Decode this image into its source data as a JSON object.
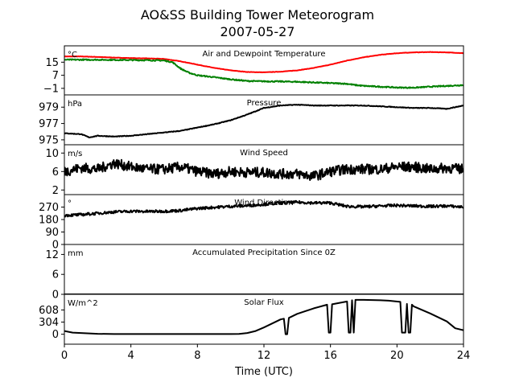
{
  "title_line1": "AO&SS Building Tower Meteorogram",
  "title_line2": "2007-05-27",
  "chart_data": {
    "type": "line",
    "xlabel": "Time (UTC)",
    "xlim": [
      0,
      24
    ],
    "xticks": [
      "0",
      "4",
      "8",
      "12",
      "16",
      "20",
      "24"
    ],
    "panels": [
      {
        "id": "temperature",
        "title": "Air and Dewpoint Temperature",
        "unit": "°C",
        "ylim": [
          -5,
          25
        ],
        "yticks": [
          "−1",
          "7",
          "15"
        ],
        "ytick_values": [
          -1,
          7,
          15
        ],
        "series": [
          {
            "color": "#ff0000",
            "x": [
              0,
              1,
              2,
              3,
              4,
              5,
              6,
              7,
              8,
              9,
              10,
              11,
              12,
              13,
              14,
              15,
              16,
              17,
              18,
              19,
              20,
              21,
              22,
              23,
              24
            ],
            "y": [
              18.5,
              18.5,
              18.2,
              17.8,
              17.5,
              17.3,
              17.0,
              15.5,
              13.5,
              11.5,
              10.0,
              9.0,
              8.8,
              9.2,
              10.0,
              11.5,
              13.5,
              16.0,
              18.0,
              19.5,
              20.5,
              21.0,
              21.2,
              21.0,
              20.5
            ]
          },
          {
            "color": "#008000",
            "x": [
              0,
              1,
              2,
              3,
              4,
              5,
              6,
              6.5,
              7,
              7.5,
              8,
              9,
              10,
              11,
              12,
              13,
              14,
              15,
              16,
              17,
              17.5,
              18,
              19,
              20,
              21,
              22,
              23,
              24
            ],
            "y": [
              16.5,
              16.5,
              16.5,
              16.4,
              16.3,
              16.2,
              16.0,
              15.0,
              11.0,
              8.5,
              7.0,
              5.8,
              4.5,
              3.5,
              3.3,
              3.2,
              3.0,
              2.6,
              2.2,
              1.8,
              1.0,
              0.5,
              0.0,
              -0.5,
              -0.6,
              0.0,
              0.5,
              1.0
            ]
          }
        ]
      },
      {
        "id": "pressure",
        "title": "Pressure",
        "unit": "hPa",
        "ylim": [
          974.4,
          980.5
        ],
        "yticks": [
          "975",
          "977",
          "979"
        ],
        "ytick_values": [
          975,
          977,
          979
        ],
        "series": [
          {
            "color": "#000000",
            "x": [
              0,
              1,
              1.5,
              2,
              3,
              4,
              5,
              6,
              7,
              8,
              9,
              10,
              11,
              12,
              13,
              14,
              15,
              16,
              17,
              18,
              19,
              20,
              21,
              22,
              23,
              24
            ],
            "y": [
              975.8,
              975.7,
              975.3,
              975.5,
              975.4,
              975.5,
              975.7,
              975.9,
              976.1,
              976.5,
              976.9,
              977.4,
              978.1,
              978.9,
              979.2,
              979.3,
              979.2,
              979.2,
              979.2,
              979.2,
              979.1,
              979.0,
              978.9,
              978.9,
              978.8,
              979.2
            ]
          }
        ]
      },
      {
        "id": "wind_speed",
        "title": "Wind Speed",
        "unit": "m/s",
        "ylim": [
          1.0,
          11.8
        ],
        "yticks": [
          "2",
          "6",
          "10"
        ],
        "ytick_values": [
          2,
          6,
          10
        ],
        "series": [
          {
            "color": "#000000",
            "x": [
              0,
              1,
              2,
              3,
              4,
              5,
              6,
              7,
              8,
              9,
              10,
              11,
              12,
              13,
              14,
              15,
              16,
              17,
              18,
              19,
              20,
              21,
              22,
              23,
              24
            ],
            "y": [
              6.0,
              6.8,
              6.5,
              7.8,
              7.0,
              6.5,
              6.5,
              7.0,
              6.0,
              5.5,
              6.0,
              5.8,
              5.8,
              5.5,
              5.5,
              5.0,
              6.0,
              6.5,
              6.5,
              6.5,
              7.0,
              7.0,
              6.5,
              6.8,
              6.5
            ]
          }
        ]
      },
      {
        "id": "wind_direction",
        "title": "Wind Direction",
        "unit": "°",
        "ylim": [
          0,
          360
        ],
        "yticks": [
          "0",
          "90",
          "180",
          "270"
        ],
        "ytick_values": [
          0,
          90,
          180,
          270
        ],
        "series": [
          {
            "color": "#000000",
            "x": [
              0,
              1,
              2,
              3,
              4,
              5,
              6,
              7,
              8,
              9,
              10,
              11,
              12,
              13,
              14,
              15,
              16,
              17,
              18,
              19,
              20,
              21,
              22,
              23,
              24
            ],
            "y": [
              210,
              215,
              225,
              235,
              240,
              238,
              240,
              245,
              260,
              268,
              275,
              280,
              290,
              300,
              305,
              300,
              300,
              275,
              272,
              278,
              282,
              278,
              275,
              278,
              270
            ]
          }
        ]
      },
      {
        "id": "precipitation",
        "title": "Accumulated Precipitation Since 0Z",
        "unit": "mm",
        "ylim": [
          0,
          15
        ],
        "yticks": [
          "0",
          "6",
          "12"
        ],
        "ytick_values": [
          0,
          6,
          12
        ],
        "series": [
          {
            "color": "#000000",
            "x": [
              0,
              24
            ],
            "y": [
              0,
              0
            ]
          }
        ]
      },
      {
        "id": "solar",
        "title": "Solar Flux",
        "unit": "W/m^2",
        "ylim": [
          -250,
          1000
        ],
        "yticks": [
          "0",
          "304",
          "608"
        ],
        "ytick_values": [
          0,
          304,
          608
        ],
        "series": [
          {
            "color": "#000000",
            "x": [
              0,
              0.5,
              1,
              2,
              3,
              4,
              5,
              6,
              7,
              8,
              9,
              10,
              10.5,
              11,
              11.5,
              12,
              13,
              13.2,
              13.3,
              13.4,
              13.5,
              14,
              15,
              15.8,
              15.9,
              16.0,
              16.1,
              17,
              17.1,
              17.2,
              17.3,
              17.4,
              17.5,
              18,
              19,
              19.5,
              20.2,
              20.3,
              20.5,
              20.6,
              20.7,
              20.8,
              20.9,
              21,
              22,
              23,
              23.5,
              24
            ],
            "y": [
              80,
              40,
              30,
              10,
              5,
              5,
              5,
              5,
              5,
              5,
              5,
              5,
              8,
              30,
              80,
              170,
              370,
              390,
              0,
              0,
              410,
              510,
              650,
              740,
              40,
              40,
              750,
              820,
              40,
              40,
              850,
              40,
              860,
              860,
              850,
              840,
              810,
              40,
              40,
              760,
              40,
              40,
              740,
              700,
              520,
              320,
              150,
              100
            ]
          }
        ]
      }
    ]
  }
}
